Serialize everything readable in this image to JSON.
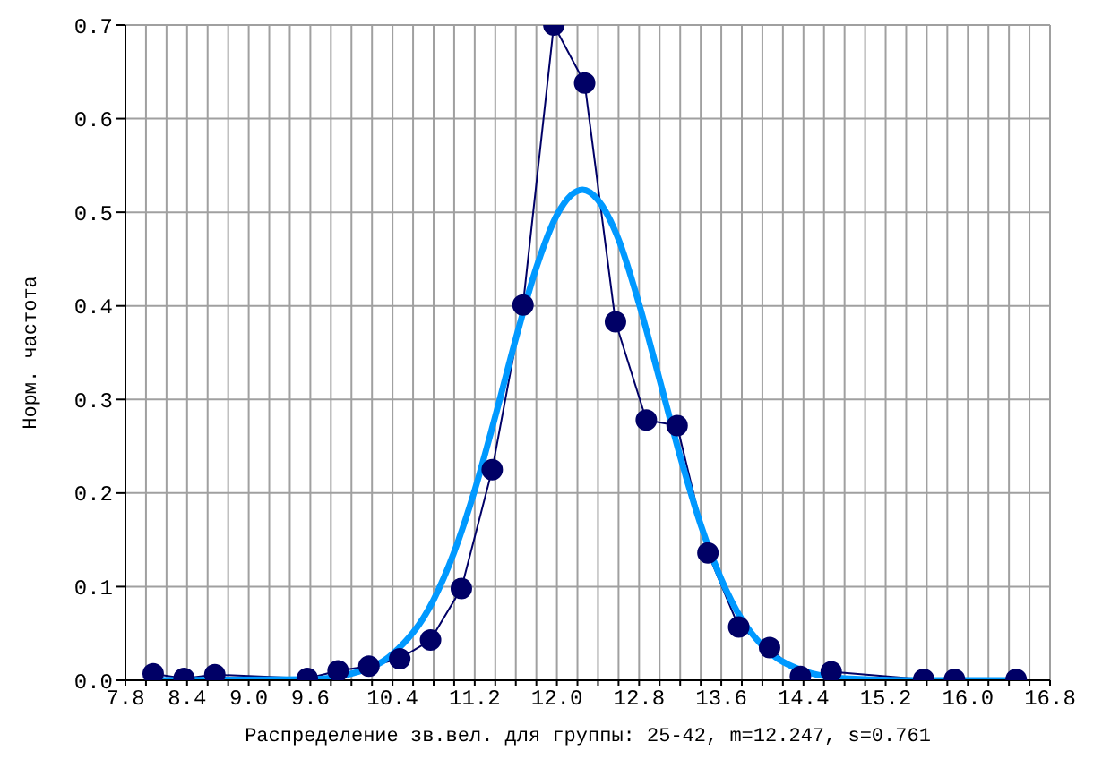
{
  "chart_data": {
    "type": "line",
    "xlabel": "Распределение зв.вел. для группы: 25-42, m=12.247, s=0.761",
    "ylabel": "Норм. частота",
    "xlim": [
      7.8,
      16.8
    ],
    "ylim": [
      0,
      0.7
    ],
    "xticks": [
      {
        "value": 7.8,
        "label": "7.8"
      },
      {
        "value": 8.0,
        "label": null
      },
      {
        "value": 8.2,
        "label": null
      },
      {
        "value": 8.4,
        "label": "8.4"
      },
      {
        "value": 8.6,
        "label": null
      },
      {
        "value": 8.8,
        "label": null
      },
      {
        "value": 9.0,
        "label": "9.0"
      },
      {
        "value": 9.2,
        "label": null
      },
      {
        "value": 9.4,
        "label": null
      },
      {
        "value": 9.6,
        "label": "9.6"
      },
      {
        "value": 9.8,
        "label": null
      },
      {
        "value": 10.0,
        "label": null
      },
      {
        "value": 10.2,
        "label": null
      },
      {
        "value": 10.4,
        "label": "10.4"
      },
      {
        "value": 10.6,
        "label": null
      },
      {
        "value": 10.8,
        "label": null
      },
      {
        "value": 11.0,
        "label": null
      },
      {
        "value": 11.2,
        "label": "11.2"
      },
      {
        "value": 11.4,
        "label": null
      },
      {
        "value": 11.6,
        "label": null
      },
      {
        "value": 11.8,
        "label": null
      },
      {
        "value": 12.0,
        "label": "12.0"
      },
      {
        "value": 12.2,
        "label": null
      },
      {
        "value": 12.4,
        "label": null
      },
      {
        "value": 12.6,
        "label": null
      },
      {
        "value": 12.8,
        "label": "12.8"
      },
      {
        "value": 13.0,
        "label": null
      },
      {
        "value": 13.2,
        "label": null
      },
      {
        "value": 13.4,
        "label": null
      },
      {
        "value": 13.6,
        "label": "13.6"
      },
      {
        "value": 13.8,
        "label": null
      },
      {
        "value": 14.0,
        "label": null
      },
      {
        "value": 14.2,
        "label": null
      },
      {
        "value": 14.4,
        "label": "14.4"
      },
      {
        "value": 14.6,
        "label": null
      },
      {
        "value": 14.8,
        "label": null
      },
      {
        "value": 15.0,
        "label": null
      },
      {
        "value": 15.2,
        "label": "15.2"
      },
      {
        "value": 15.4,
        "label": null
      },
      {
        "value": 15.6,
        "label": null
      },
      {
        "value": 15.8,
        "label": null
      },
      {
        "value": 16.0,
        "label": "16.0"
      },
      {
        "value": 16.2,
        "label": null
      },
      {
        "value": 16.4,
        "label": null
      },
      {
        "value": 16.6,
        "label": null
      },
      {
        "value": 16.8,
        "label": "16.8"
      }
    ],
    "yticks": [
      {
        "value": 0,
        "label": "0.0"
      },
      0.1,
      0.2,
      0.3,
      0.4,
      0.5,
      0.6,
      0.7
    ],
    "grid": true,
    "series": [
      {
        "color": "#000066",
        "marker": "circle",
        "x": [
          8.07,
          8.37,
          8.67,
          9.57,
          9.87,
          10.17,
          10.47,
          10.77,
          11.07,
          11.37,
          11.67,
          11.97,
          12.27,
          12.57,
          12.87,
          13.17,
          13.47,
          13.77,
          14.07,
          14.37,
          14.67,
          15.57,
          15.87,
          16.47
        ],
        "values": [
          0.007,
          0.002,
          0.006,
          0.002,
          0.01,
          0.015,
          0.023,
          0.043,
          0.098,
          0.225,
          0.401,
          0.7,
          0.638,
          0.383,
          0.278,
          0.272,
          0.136,
          0.057,
          0.035,
          0.004,
          0.009,
          0.001,
          0.001,
          0.001
        ]
      },
      {
        "color": "#0099ff",
        "marker": "none",
        "x": [
          8.07,
          9.6,
          10.0,
          10.4,
          10.8,
          11.0,
          11.2,
          11.4,
          11.6,
          11.8,
          12.0,
          12.25,
          12.4,
          12.6,
          12.8,
          13.0,
          13.2,
          13.4,
          13.6,
          13.8,
          14.0,
          14.4,
          14.8,
          15.4,
          16.47
        ],
        "values": [
          0,
          0.001,
          0.007,
          0.028,
          0.086,
          0.137,
          0.203,
          0.282,
          0.365,
          0.441,
          0.497,
          0.524,
          0.513,
          0.471,
          0.402,
          0.321,
          0.239,
          0.166,
          0.108,
          0.065,
          0.037,
          0.01,
          0.002,
          0,
          0
        ]
      }
    ]
  }
}
